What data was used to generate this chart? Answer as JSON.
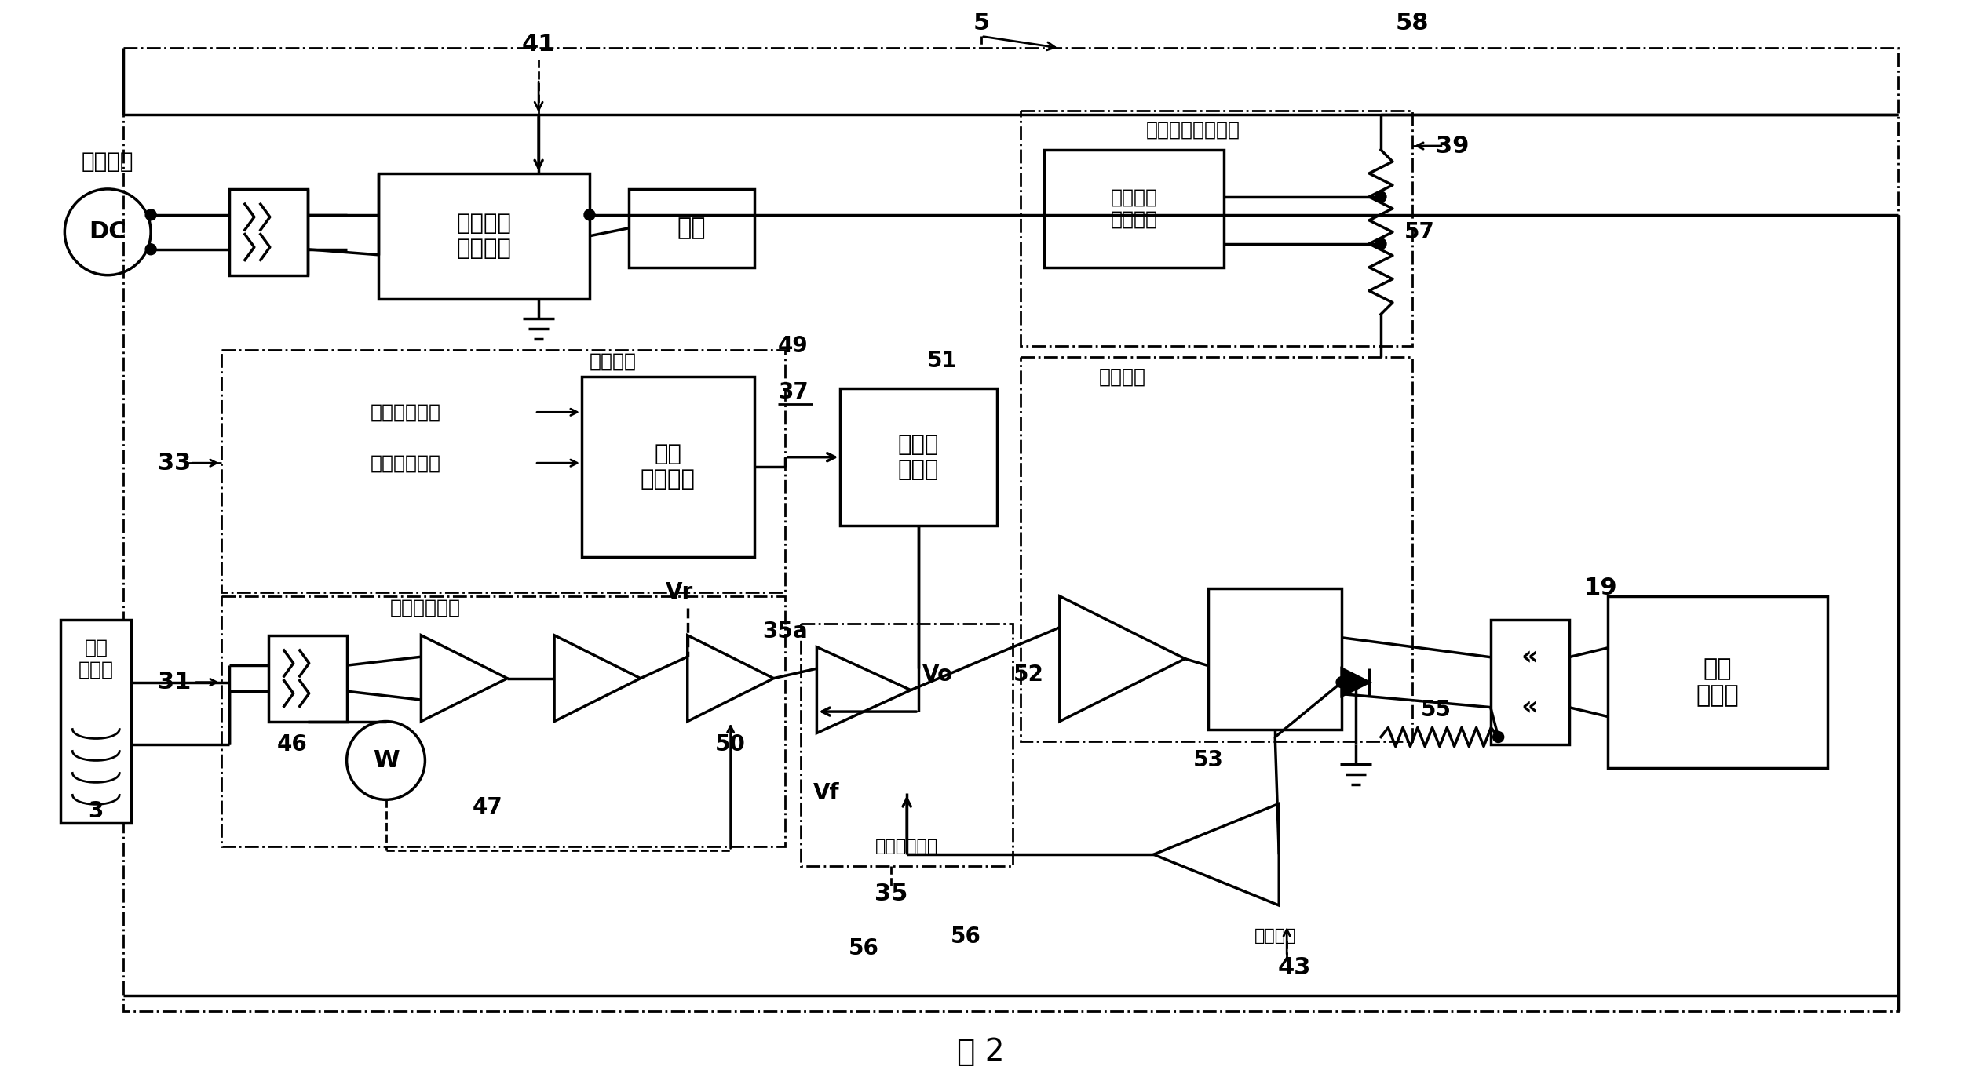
{
  "title": "图 2",
  "bg_color": "#ffffff",
  "fig_width": 24.98,
  "fig_height": 13.92,
  "dpi": 100,
  "labels": {
    "dc_label": "直流电源",
    "dc": "DC",
    "box_abnormal": "异常电压\n保护电路",
    "box_current": "电流",
    "box_highfreq": "高频\n生成电路",
    "box_triangle": "三角波\n发生器",
    "box_overcurrent_protect": "电流过载保护电路",
    "box_overcurrent_prevent": "电流过载\n防止电路",
    "box_drive": "驱动电路",
    "box_diff": "差动放大电路",
    "box_feedback": "反馈电路",
    "box_em_valve": "电磁\n比例阀",
    "label_33": "33",
    "label_31": "31",
    "label_41": "41",
    "label_5": "5",
    "label_58": "58",
    "label_39": "39",
    "label_57": "57",
    "label_19": "19",
    "label_49": "49",
    "label_37": "37",
    "label_51": "51",
    "label_35a": "35a",
    "label_35": "35",
    "label_50": "50",
    "label_Vr": "Vr",
    "label_Vo": "Vo",
    "label_Vf": "Vf",
    "label_52": "52",
    "label_53": "53",
    "label_55": "55",
    "label_56": "56",
    "label_43": "43",
    "label_46": "46",
    "label_47": "47",
    "label_3": "3",
    "label_W": "W",
    "text_hf_circuit": "高频电路",
    "text_temp_circuit": "温度判定电路",
    "text_hf_freq": "高频频率调整",
    "text_hf_amp": "高频振幅调整",
    "text_sensor": "温度\n传感器"
  }
}
